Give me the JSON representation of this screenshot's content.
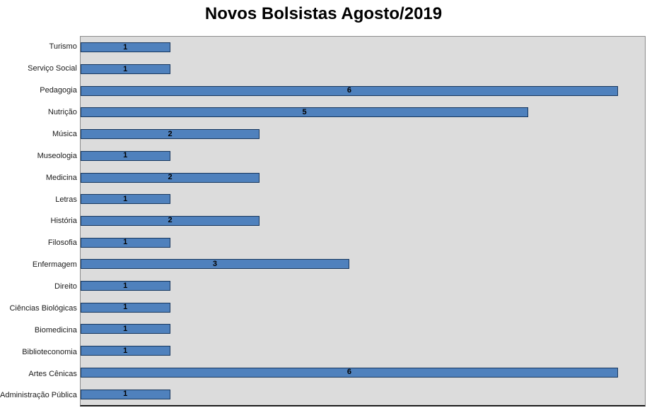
{
  "title": "Novos Bolsistas Agosto/2019",
  "chart_data": {
    "type": "bar",
    "orientation": "horizontal",
    "title": "Novos Bolsistas Agosto/2019",
    "categories": [
      "Turismo",
      "Serviço Social",
      "Pedagogia",
      "Nutrição",
      "Música",
      "Museologia",
      "Medicina",
      "Letras",
      "História",
      "Filosofia",
      "Enfermagem",
      "Direito",
      "Ciências Biológicas",
      "Biomedicina",
      "Biblioteconomia",
      "Artes Cênicas",
      "Administração Pública"
    ],
    "values": [
      1,
      1,
      6,
      5,
      2,
      1,
      2,
      1,
      2,
      1,
      3,
      1,
      1,
      1,
      1,
      6,
      1
    ],
    "xlabel": "",
    "ylabel": "",
    "xlim": [
      0,
      6.3
    ],
    "grid": false,
    "legend": "none",
    "data_labels": true,
    "colors": {
      "bar_fill": "#4f81bd",
      "bar_border": "#17375e",
      "plot_background": "#dcdcdc",
      "data_label_color": "#000000",
      "title_color": "#000000"
    }
  }
}
